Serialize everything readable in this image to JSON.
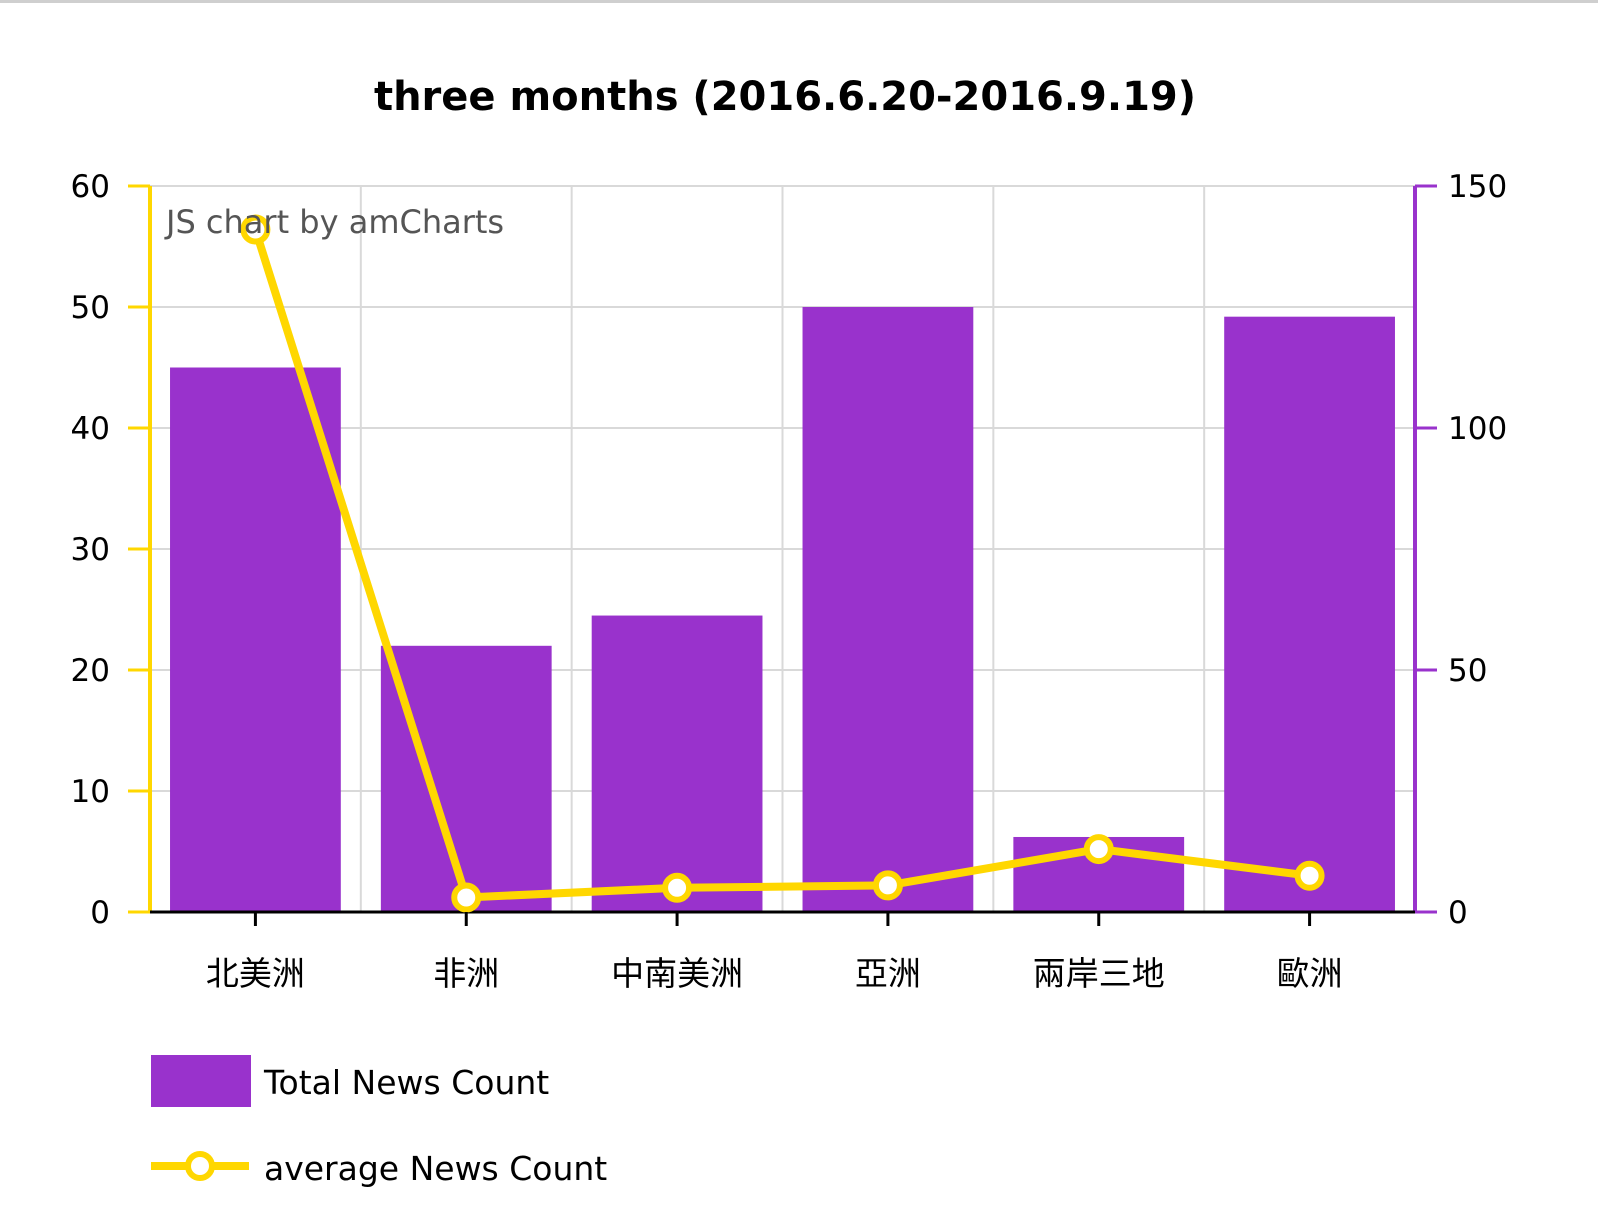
{
  "chart_data": {
    "type": "bar",
    "title": "three months (2016.6.20-2016.9.19)",
    "credit": "JS chart by amCharts",
    "categories": [
      "北美洲",
      "非洲",
      "中南美洲",
      "亞洲",
      "兩岸三地",
      "歐洲"
    ],
    "series": [
      {
        "name": "Total News Count",
        "type": "bar",
        "axis": "left",
        "values": [
          45,
          22,
          24.5,
          50,
          6.2,
          49.2
        ],
        "color": "#9932CC"
      },
      {
        "name": "average News Count",
        "type": "line",
        "axis": "right",
        "values": [
          141,
          3,
          5,
          5.5,
          13,
          7.5
        ],
        "color": "#FFD700"
      }
    ],
    "y_left": {
      "min": 0,
      "max": 60,
      "ticks": [
        "0",
        "10",
        "20",
        "30",
        "40",
        "50",
        "60"
      ],
      "color": "#FFD700"
    },
    "y_right": {
      "min": 0,
      "max": 150,
      "ticks": [
        "0",
        "50",
        "100",
        "150"
      ],
      "color": "#9932CC"
    },
    "grid": true,
    "legend_position": "bottom-left"
  }
}
